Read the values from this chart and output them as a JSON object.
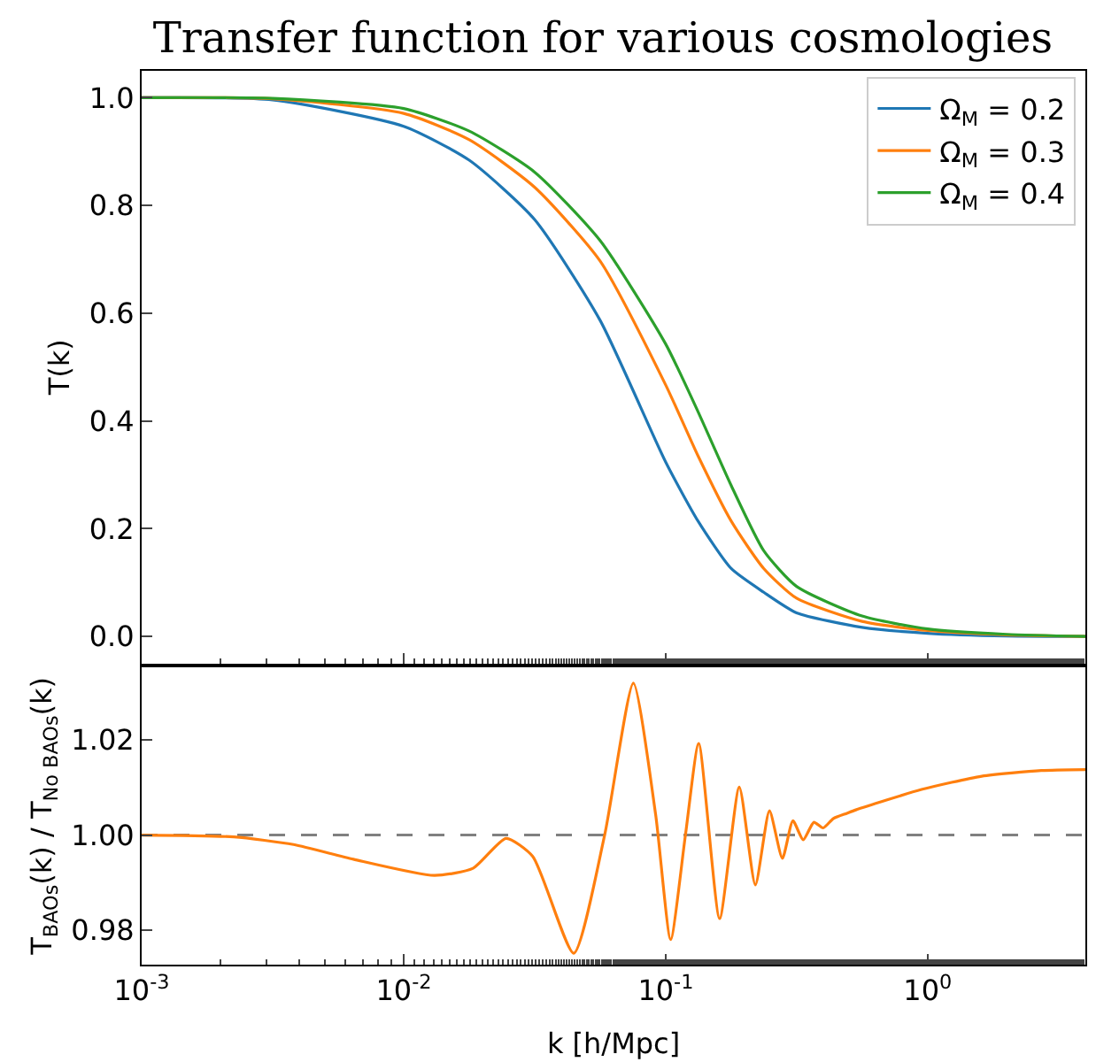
{
  "chart_data": [
    {
      "type": "line",
      "title": "Transfer function for various cosmologies",
      "ylabel": "T(k)",
      "log": "x",
      "grid": false,
      "legend": "top right",
      "marker": "none",
      "line_style": "solid",
      "tick_labels": "y",
      "xlim": [
        0.001,
        4
      ],
      "xticks": [
        {
          "value": 0.001,
          "label": "10$^{-3}$"
        },
        {
          "value": 0.01,
          "label": "10$^{-2}$"
        },
        {
          "value": 0.1,
          "label": "10$^{-1}$"
        },
        {
          "value": 1,
          "label": "10$^{0}$"
        }
      ],
      "ylim": [
        -0.05,
        1.05
      ],
      "yticks": [
        {
          "value": 0,
          "label": "0.0"
        },
        0.2,
        0.4,
        0.6,
        0.8,
        {
          "value": 1,
          "label": "1.0"
        }
      ],
      "x": [
        0.001,
        0.00316,
        0.01,
        0.0178,
        0.0316,
        0.0562,
        0.1,
        0.133,
        0.178,
        0.237,
        0.316,
        0.562,
        1,
        2,
        4
      ],
      "series": [
        {
          "name": "Ω$_{M}$ = 0.2",
          "color": "#1f77b4",
          "values": [
            1.0,
            0.996,
            0.947,
            0.884,
            0.774,
            0.587,
            0.324,
            0.214,
            0.126,
            0.082,
            0.044,
            0.017,
            0.006,
            0.001,
            0.0
          ]
        },
        {
          "name": "Ω$_{M}$ = 0.3",
          "color": "#ff7f0e",
          "values": [
            1.0,
            0.998,
            0.971,
            0.922,
            0.834,
            0.697,
            0.467,
            0.335,
            0.214,
            0.126,
            0.071,
            0.028,
            0.011,
            0.003,
            0.0
          ]
        },
        {
          "name": "Ω$_{M}$ = 0.4",
          "color": "#2ca02c",
          "values": [
            1.0,
            0.999,
            0.98,
            0.938,
            0.862,
            0.735,
            0.543,
            0.417,
            0.28,
            0.159,
            0.093,
            0.038,
            0.014,
            0.004,
            0.0
          ]
        }
      ]
    },
    {
      "type": "line",
      "xlabel": "k [h/Mpc]",
      "ylabel": "T$_{BAOs}$(k) / T$_{No BAOs}$(k)",
      "log": "x",
      "grid": false,
      "legend": false,
      "marker": "none",
      "line_style": "solid",
      "xlim": [
        0.001,
        4
      ],
      "xticks": [
        {
          "value": 0.001,
          "label": "10$^{-3}$"
        },
        {
          "value": 0.01,
          "label": "10$^{-2}$"
        },
        {
          "value": 0.1,
          "label": "10$^{-1}$"
        },
        {
          "value": 1,
          "label": "10$^{0}$"
        }
      ],
      "ylim": [
        0.9727,
        1.0354
      ],
      "yticks": [
        {
          "value": 0.98,
          "label": "0.98"
        },
        {
          "value": 1.0,
          "label": "1.00"
        },
        {
          "value": 1.02,
          "label": "1.02"
        }
      ],
      "ref_lines": [
        {
          "axis": "y",
          "value": 1.0,
          "label": null,
          "color": "#808080",
          "line_style": "dashed"
        }
      ],
      "x": [
        0.001,
        0.00225,
        0.0038,
        0.00643,
        0.0131,
        0.0184,
        0.0246,
        0.0311,
        0.0446,
        0.0585,
        0.0753,
        0.0916,
        0.1045,
        0.119,
        0.1337,
        0.1607,
        0.191,
        0.22,
        0.249,
        0.279,
        0.306,
        0.335,
        0.368,
        0.399,
        0.437,
        0.492,
        0.532,
        0.948,
        1.607,
        2.716,
        4
      ],
      "series": [
        {
          "color": "#ff7f0e",
          "values": [
            1.0,
            0.9996,
            0.998,
            0.9949,
            0.9915,
            0.993,
            0.9993,
            0.9955,
            0.9751,
            1.0,
            1.032,
            1.0043,
            0.978,
            1.0,
            1.0193,
            0.9824,
            1.0101,
            0.9895,
            1.0051,
            0.9951,
            1.003,
            0.999,
            1.0027,
            1.0015,
            1.0035,
            1.0046,
            1.0053,
            1.0096,
            1.0124,
            1.0136,
            1.0138
          ]
        }
      ]
    }
  ]
}
